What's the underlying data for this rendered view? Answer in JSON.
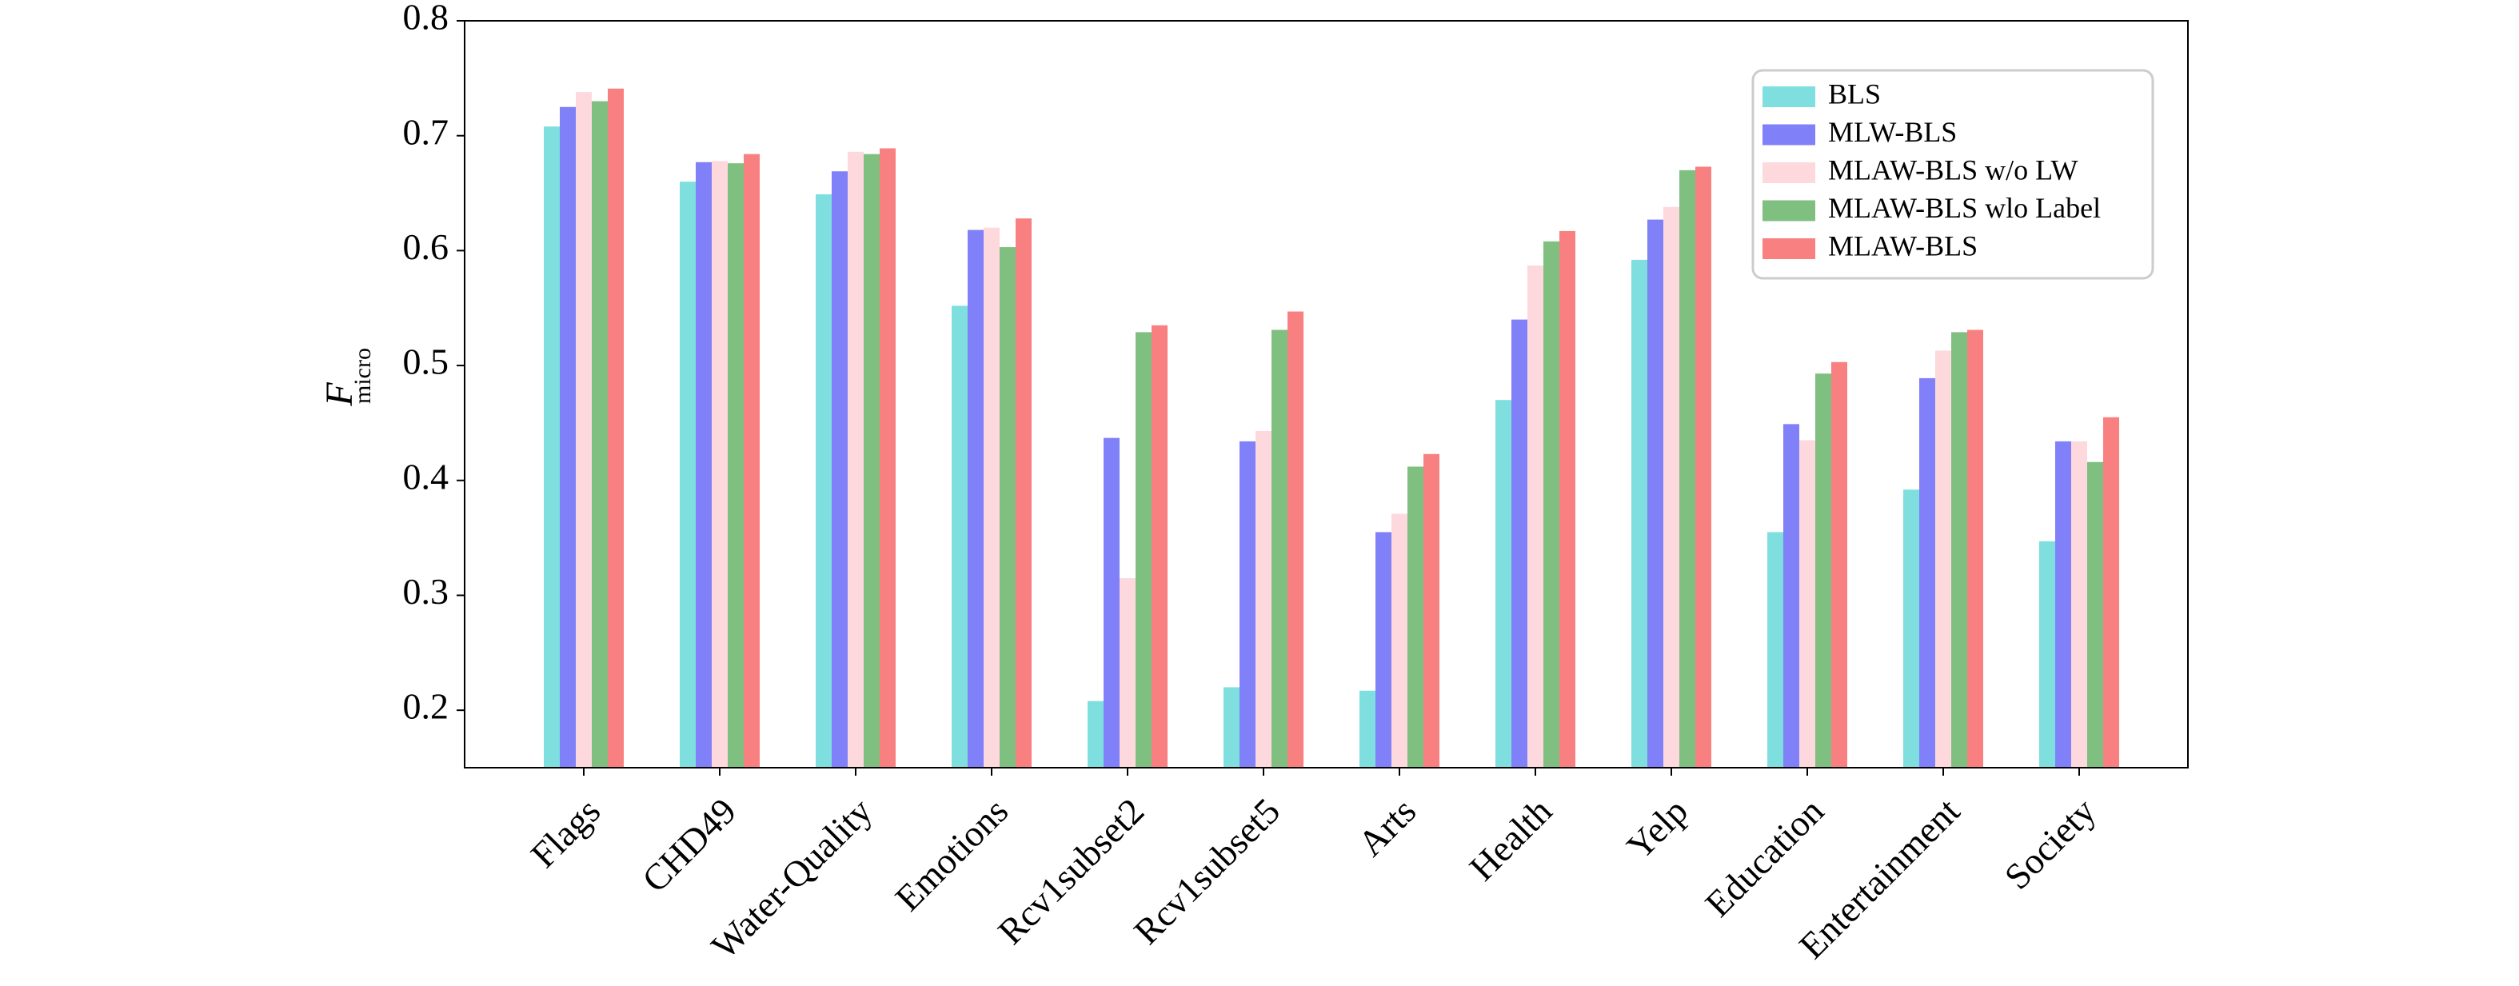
{
  "chart_data": {
    "type": "bar",
    "ylabel": "F",
    "ylabel_subscript": "micro",
    "categories": [
      "Flags",
      "CHD49",
      "Water-Quality",
      "Emotions",
      "Rcv1subset2",
      "Rcv1subset5",
      "Arts",
      "Health",
      "Yelp",
      "Education",
      "Entertainment",
      "Society"
    ],
    "series": [
      {
        "name": "BLS",
        "color": "#7fdfdf",
        "values": [
          0.708,
          0.66,
          0.649,
          0.552,
          0.208,
          0.22,
          0.217,
          0.47,
          0.592,
          0.355,
          0.392,
          0.347
        ]
      },
      {
        "name": "MLW-BLS",
        "color": "#8080f8",
        "values": [
          0.725,
          0.677,
          0.669,
          0.618,
          0.437,
          0.434,
          0.355,
          0.54,
          0.627,
          0.449,
          0.489,
          0.434
        ]
      },
      {
        "name": "MLAW-BLS w/o LW",
        "color": "#fdd9de",
        "values": [
          0.738,
          0.678,
          0.686,
          0.62,
          0.315,
          0.443,
          0.371,
          0.587,
          0.638,
          0.435,
          0.513,
          0.434
        ]
      },
      {
        "name": "MLAW-BLS wlo Label",
        "color": "#7fbf7f",
        "values": [
          0.73,
          0.676,
          0.684,
          0.603,
          0.529,
          0.531,
          0.412,
          0.608,
          0.67,
          0.493,
          0.529,
          0.416
        ]
      },
      {
        "name": "MLAW-BLS",
        "color": "#f88080",
        "values": [
          0.741,
          0.684,
          0.689,
          0.628,
          0.535,
          0.547,
          0.423,
          0.617,
          0.673,
          0.503,
          0.531,
          0.455
        ]
      }
    ],
    "ylim": [
      0.15,
      0.8
    ],
    "yticks": [
      0.2,
      0.3,
      0.4,
      0.5,
      0.6,
      0.7,
      0.8
    ],
    "grid": false,
    "legend": "upper right"
  }
}
